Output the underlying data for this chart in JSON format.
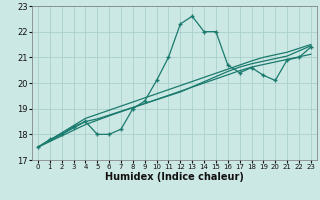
{
  "xlabel": "Humidex (Indice chaleur)",
  "ylabel": "",
  "x_data": [
    0,
    1,
    2,
    3,
    4,
    5,
    6,
    7,
    8,
    9,
    10,
    11,
    12,
    13,
    14,
    15,
    16,
    17,
    18,
    19,
    20,
    21,
    22,
    23
  ],
  "main_line": [
    17.5,
    17.8,
    18.0,
    18.3,
    18.5,
    18.0,
    18.0,
    18.2,
    19.0,
    19.3,
    20.1,
    21.0,
    22.3,
    22.6,
    22.0,
    22.0,
    20.7,
    20.4,
    20.6,
    20.3,
    20.1,
    20.9,
    21.0,
    21.4
  ],
  "linear1": [
    17.5,
    17.72,
    17.94,
    18.16,
    18.38,
    18.55,
    18.72,
    18.88,
    19.04,
    19.2,
    19.36,
    19.52,
    19.68,
    19.84,
    20.0,
    20.16,
    20.32,
    20.48,
    20.62,
    20.72,
    20.82,
    20.92,
    21.02,
    21.12
  ],
  "linear2": [
    17.5,
    17.75,
    18.0,
    18.25,
    18.5,
    18.6,
    18.75,
    18.9,
    19.05,
    19.2,
    19.35,
    19.5,
    19.65,
    19.85,
    20.05,
    20.25,
    20.45,
    20.62,
    20.75,
    20.85,
    20.95,
    21.05,
    21.25,
    21.45
  ],
  "linear3": [
    17.5,
    17.78,
    18.06,
    18.34,
    18.62,
    18.78,
    18.94,
    19.1,
    19.26,
    19.42,
    19.58,
    19.74,
    19.9,
    20.06,
    20.22,
    20.38,
    20.54,
    20.7,
    20.86,
    21.0,
    21.1,
    21.2,
    21.35,
    21.5
  ],
  "line_color": "#1a7a6e",
  "bg_color": "#cce8e4",
  "grid_color": "#aad0ca",
  "xlim": [
    -0.5,
    23.5
  ],
  "ylim": [
    17.0,
    23.0
  ],
  "yticks": [
    17,
    18,
    19,
    20,
    21,
    22,
    23
  ],
  "xticks": [
    0,
    1,
    2,
    3,
    4,
    5,
    6,
    7,
    8,
    9,
    10,
    11,
    12,
    13,
    14,
    15,
    16,
    17,
    18,
    19,
    20,
    21,
    22,
    23
  ]
}
